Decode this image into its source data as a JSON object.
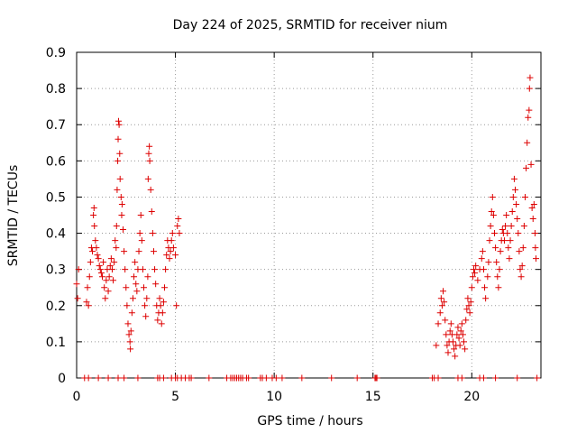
{
  "chart_data": {
    "type": "scatter",
    "title": "Day 224 of 2025, SRMTID for receiver nium",
    "xlabel": "GPS time / hours",
    "ylabel": "SRMTID / TECUs",
    "xlim": [
      0,
      23.5
    ],
    "ylim": [
      0,
      0.9
    ],
    "xticks": [
      0,
      5,
      10,
      15,
      20
    ],
    "yticks": [
      0,
      0.1,
      0.2,
      0.3,
      0.4,
      0.5,
      0.6,
      0.7,
      0.8,
      0.9
    ],
    "xtick_labels": [
      "0",
      "5",
      "10",
      "15",
      "20"
    ],
    "ytick_labels": [
      "0",
      "0.1",
      "0.2",
      "0.3",
      "0.4",
      "0.5",
      "0.6",
      "0.7",
      "0.8",
      "0.9"
    ],
    "grid": true,
    "grid_style": "dotted",
    "marker": "+",
    "series_color": "#dd0000",
    "series": [
      {
        "name": "SRMTID",
        "points": [
          [
            0.0,
            0.26
          ],
          [
            0.05,
            0.22
          ],
          [
            0.1,
            0.3
          ],
          [
            0.5,
            0.21
          ],
          [
            0.55,
            0.25
          ],
          [
            0.6,
            0.2
          ],
          [
            0.65,
            0.28
          ],
          [
            0.7,
            0.32
          ],
          [
            0.75,
            0.36
          ],
          [
            0.8,
            0.35
          ],
          [
            0.85,
            0.45
          ],
          [
            0.88,
            0.47
          ],
          [
            0.9,
            0.42
          ],
          [
            0.95,
            0.38
          ],
          [
            1.0,
            0.36
          ],
          [
            1.05,
            0.34
          ],
          [
            1.1,
            0.33
          ],
          [
            1.15,
            0.31
          ],
          [
            1.2,
            0.3
          ],
          [
            1.25,
            0.29
          ],
          [
            1.3,
            0.28
          ],
          [
            1.35,
            0.32
          ],
          [
            1.4,
            0.25
          ],
          [
            1.45,
            0.22
          ],
          [
            1.5,
            0.27
          ],
          [
            1.55,
            0.3
          ],
          [
            1.6,
            0.24
          ],
          [
            1.65,
            0.28
          ],
          [
            1.7,
            0.31
          ],
          [
            1.75,
            0.33
          ],
          [
            1.8,
            0.3
          ],
          [
            1.85,
            0.27
          ],
          [
            1.9,
            0.32
          ],
          [
            1.95,
            0.38
          ],
          [
            2.0,
            0.36
          ],
          [
            2.02,
            0.42
          ],
          [
            2.05,
            0.52
          ],
          [
            2.08,
            0.6
          ],
          [
            2.1,
            0.66
          ],
          [
            2.12,
            0.71
          ],
          [
            2.15,
            0.7
          ],
          [
            2.18,
            0.62
          ],
          [
            2.2,
            0.55
          ],
          [
            2.25,
            0.5
          ],
          [
            2.28,
            0.45
          ],
          [
            2.3,
            0.48
          ],
          [
            2.35,
            0.41
          ],
          [
            2.4,
            0.35
          ],
          [
            2.45,
            0.3
          ],
          [
            2.5,
            0.25
          ],
          [
            2.55,
            0.2
          ],
          [
            2.6,
            0.15
          ],
          [
            2.65,
            0.12
          ],
          [
            2.7,
            0.1
          ],
          [
            2.72,
            0.08
          ],
          [
            2.75,
            0.13
          ],
          [
            2.8,
            0.18
          ],
          [
            2.85,
            0.22
          ],
          [
            2.9,
            0.28
          ],
          [
            2.95,
            0.32
          ],
          [
            3.0,
            0.26
          ],
          [
            3.05,
            0.24
          ],
          [
            3.1,
            0.3
          ],
          [
            3.15,
            0.35
          ],
          [
            3.2,
            0.4
          ],
          [
            3.25,
            0.45
          ],
          [
            3.3,
            0.38
          ],
          [
            3.35,
            0.3
          ],
          [
            3.4,
            0.25
          ],
          [
            3.45,
            0.2
          ],
          [
            3.5,
            0.17
          ],
          [
            3.55,
            0.22
          ],
          [
            3.6,
            0.28
          ],
          [
            3.62,
            0.55
          ],
          [
            3.65,
            0.62
          ],
          [
            3.68,
            0.64
          ],
          [
            3.7,
            0.6
          ],
          [
            3.75,
            0.52
          ],
          [
            3.8,
            0.46
          ],
          [
            3.85,
            0.4
          ],
          [
            3.9,
            0.35
          ],
          [
            3.95,
            0.3
          ],
          [
            4.0,
            0.26
          ],
          [
            4.05,
            0.2
          ],
          [
            4.1,
            0.16
          ],
          [
            4.15,
            0.18
          ],
          [
            4.2,
            0.22
          ],
          [
            4.25,
            0.2
          ],
          [
            4.3,
            0.15
          ],
          [
            4.35,
            0.18
          ],
          [
            4.4,
            0.21
          ],
          [
            4.45,
            0.25
          ],
          [
            4.5,
            0.3
          ],
          [
            4.55,
            0.34
          ],
          [
            4.6,
            0.38
          ],
          [
            4.65,
            0.36
          ],
          [
            4.7,
            0.33
          ],
          [
            4.75,
            0.35
          ],
          [
            4.8,
            0.38
          ],
          [
            4.85,
            0.4
          ],
          [
            4.9,
            0.36
          ],
          [
            5.0,
            0.34
          ],
          [
            5.05,
            0.2
          ],
          [
            5.1,
            0.42
          ],
          [
            5.15,
            0.44
          ],
          [
            5.2,
            0.4
          ],
          [
            18.2,
            0.09
          ],
          [
            18.3,
            0.15
          ],
          [
            18.4,
            0.18
          ],
          [
            18.45,
            0.22
          ],
          [
            18.5,
            0.2
          ],
          [
            18.55,
            0.24
          ],
          [
            18.6,
            0.21
          ],
          [
            18.65,
            0.16
          ],
          [
            18.7,
            0.12
          ],
          [
            18.75,
            0.09
          ],
          [
            18.8,
            0.07
          ],
          [
            18.85,
            0.1
          ],
          [
            18.9,
            0.13
          ],
          [
            18.95,
            0.15
          ],
          [
            19.0,
            0.12
          ],
          [
            19.05,
            0.1
          ],
          [
            19.1,
            0.08
          ],
          [
            19.15,
            0.06
          ],
          [
            19.2,
            0.09
          ],
          [
            19.25,
            0.12
          ],
          [
            19.3,
            0.14
          ],
          [
            19.35,
            0.11
          ],
          [
            19.4,
            0.09
          ],
          [
            19.45,
            0.13
          ],
          [
            19.5,
            0.15
          ],
          [
            19.55,
            0.12
          ],
          [
            19.6,
            0.1
          ],
          [
            19.65,
            0.08
          ],
          [
            19.7,
            0.16
          ],
          [
            19.75,
            0.19
          ],
          [
            19.8,
            0.22
          ],
          [
            19.85,
            0.2
          ],
          [
            19.9,
            0.18
          ],
          [
            19.95,
            0.21
          ],
          [
            20.0,
            0.25
          ],
          [
            20.05,
            0.28
          ],
          [
            20.1,
            0.3
          ],
          [
            20.15,
            0.29
          ],
          [
            20.2,
            0.31
          ],
          [
            20.3,
            0.27
          ],
          [
            20.4,
            0.3
          ],
          [
            20.5,
            0.33
          ],
          [
            20.55,
            0.35
          ],
          [
            20.6,
            0.3
          ],
          [
            20.65,
            0.25
          ],
          [
            20.7,
            0.22
          ],
          [
            20.8,
            0.28
          ],
          [
            20.85,
            0.32
          ],
          [
            20.9,
            0.38
          ],
          [
            20.95,
            0.42
          ],
          [
            21.0,
            0.46
          ],
          [
            21.05,
            0.5
          ],
          [
            21.1,
            0.45
          ],
          [
            21.15,
            0.4
          ],
          [
            21.2,
            0.36
          ],
          [
            21.25,
            0.32
          ],
          [
            21.3,
            0.28
          ],
          [
            21.35,
            0.25
          ],
          [
            21.4,
            0.3
          ],
          [
            21.45,
            0.35
          ],
          [
            21.5,
            0.38
          ],
          [
            21.55,
            0.41
          ],
          [
            21.6,
            0.4
          ],
          [
            21.65,
            0.38
          ],
          [
            21.7,
            0.42
          ],
          [
            21.75,
            0.45
          ],
          [
            21.8,
            0.4
          ],
          [
            21.85,
            0.36
          ],
          [
            21.9,
            0.33
          ],
          [
            21.95,
            0.38
          ],
          [
            22.0,
            0.42
          ],
          [
            22.05,
            0.46
          ],
          [
            22.1,
            0.5
          ],
          [
            22.15,
            0.55
          ],
          [
            22.2,
            0.52
          ],
          [
            22.25,
            0.48
          ],
          [
            22.3,
            0.44
          ],
          [
            22.35,
            0.4
          ],
          [
            22.4,
            0.35
          ],
          [
            22.45,
            0.3
          ],
          [
            22.5,
            0.28
          ],
          [
            22.55,
            0.31
          ],
          [
            22.6,
            0.36
          ],
          [
            22.65,
            0.42
          ],
          [
            22.7,
            0.5
          ],
          [
            22.75,
            0.58
          ],
          [
            22.8,
            0.65
          ],
          [
            22.85,
            0.72
          ],
          [
            22.9,
            0.74
          ],
          [
            22.92,
            0.8
          ],
          [
            22.95,
            0.83
          ],
          [
            23.0,
            0.59
          ],
          [
            23.05,
            0.47
          ],
          [
            23.1,
            0.44
          ],
          [
            23.15,
            0.48
          ],
          [
            23.2,
            0.4
          ],
          [
            23.22,
            0.36
          ],
          [
            23.25,
            0.33
          ]
        ],
        "zero_points": [
          0.4,
          0.6,
          1.1,
          1.6,
          2.1,
          2.4,
          3.1,
          4.1,
          4.2,
          4.4,
          4.8,
          5.0,
          5.1,
          5.3,
          5.5,
          5.7,
          5.8,
          6.7,
          7.6,
          7.8,
          7.9,
          8.0,
          8.1,
          8.2,
          8.3,
          8.4,
          8.6,
          8.7,
          9.3,
          9.4,
          9.6,
          9.9,
          10.1,
          10.4,
          11.4,
          12.9,
          14.2,
          15.1,
          15.15,
          15.2,
          18.0,
          18.1,
          18.3,
          19.3,
          19.5,
          20.4,
          20.6,
          21.2,
          22.3,
          23.3
        ]
      }
    ]
  }
}
